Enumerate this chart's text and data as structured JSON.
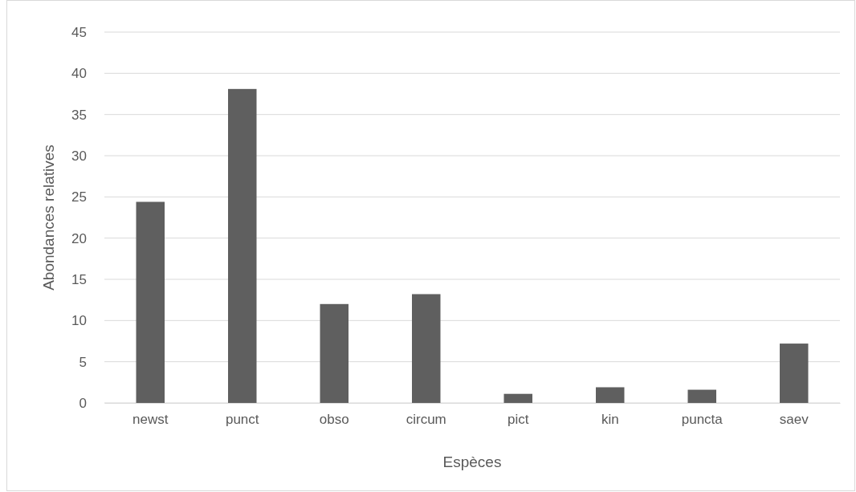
{
  "chart_data": {
    "type": "bar",
    "xlabel": "Espèces",
    "ylabel": "Abondances relatives",
    "categories": [
      "newst",
      "punct",
      "obso",
      "circum",
      "pict",
      "kin",
      "puncta",
      "saev"
    ],
    "values": [
      24.4,
      38.1,
      12.0,
      13.2,
      1.1,
      1.9,
      1.6,
      7.2
    ],
    "color": "#5f5f5f",
    "ylim": [
      0,
      45
    ],
    "yticks": [
      0,
      5,
      10,
      15,
      20,
      25,
      30,
      35,
      40,
      45
    ],
    "grid": "y"
  }
}
